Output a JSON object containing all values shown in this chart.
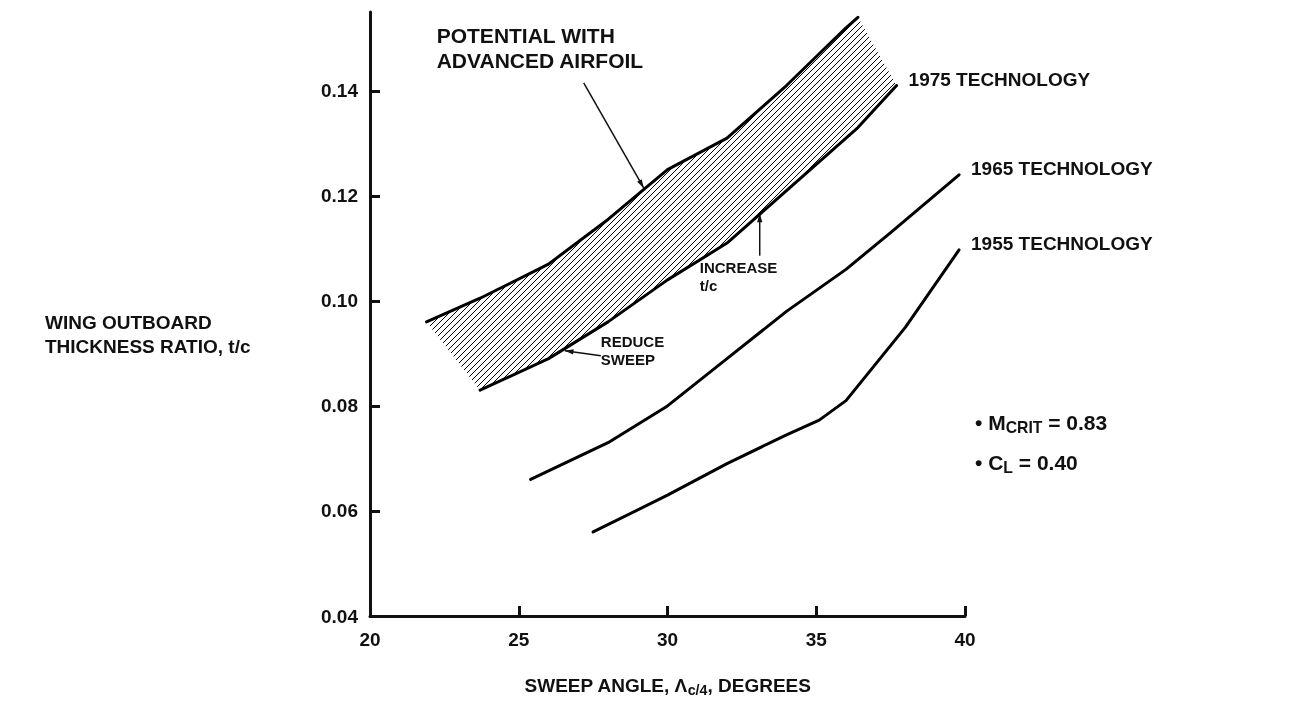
{
  "chart_data": {
    "type": "line",
    "xlabel": "SWEEP ANGLE, Λ$_{c/4}$, DEGREES",
    "ylabel": "WING OUTBOARD THICKNESS RATIO, t/c",
    "xlim": [
      20,
      40
    ],
    "xticks": [
      20,
      25,
      30,
      35,
      40
    ],
    "ylim": [
      0.04,
      0.155
    ],
    "yticks": [
      {
        "value": 0.04,
        "label": "0.04"
      },
      {
        "value": 0.06,
        "label": "0.06"
      },
      {
        "value": 0.08,
        "label": "0.08"
      },
      {
        "value": 0.1,
        "label": "0.10"
      },
      {
        "value": 0.12,
        "label": "0.12"
      },
      {
        "value": 0.14,
        "label": "0.14"
      }
    ],
    "grid": false,
    "legend": false,
    "marker": "none",
    "line_style": "solid",
    "series": [
      {
        "name": "1975 TECHNOLOGY",
        "color": "#000000",
        "x": [
          21.9,
          23.7,
          26,
          28,
          30,
          32,
          34,
          36,
          36.4,
          37.7
        ],
        "values": [
          null,
          0.083,
          0.089,
          0.096,
          0.104,
          0.111,
          0.121,
          0.131,
          0.133,
          0.141
        ],
        "lower": [
          0.096,
          0.083,
          0.089,
          0.096,
          0.104,
          0.111,
          0.121,
          0.131,
          0.133,
          0.141
        ],
        "upper": [
          0.096,
          0.1005,
          0.107,
          0.1155,
          0.125,
          0.131,
          0.141,
          0.152,
          0.154,
          0.141
        ]
      },
      {
        "color": "#000000",
        "x": [
          21.9,
          23.7,
          26,
          28,
          30,
          32,
          34,
          36,
          36.4
        ],
        "values": [
          0.096,
          0.1005,
          0.107,
          0.1155,
          0.125,
          0.131,
          0.141,
          0.152,
          0.154
        ]
      },
      {
        "name": "1965 TECHNOLOGY",
        "color": "#000000",
        "x": [
          25.4,
          28,
          30,
          32,
          34,
          36,
          37.5,
          39.8
        ],
        "values": [
          0.066,
          0.073,
          0.08,
          0.089,
          0.098,
          0.106,
          0.113,
          0.124
        ]
      },
      {
        "name": "1955 TECHNOLOGY",
        "color": "#000000",
        "x": [
          27.5,
          30,
          32,
          34,
          35.1,
          36,
          38,
          39.8
        ],
        "values": [
          0.056,
          0.063,
          0.069,
          0.0745,
          0.0773,
          0.081,
          0.095,
          0.1097
        ]
      }
    ],
    "annotations": [
      {
        "text": "POTENTIAL WITH\nADVANCED AIRFOIL",
        "x": 29.2,
        "y": 0.1215
      },
      {
        "text": "INCREASE\nt/c",
        "x": 33.1,
        "y": 0.1166
      },
      {
        "text": "REDUCE\nSWEEP",
        "x": 26.55,
        "y": 0.0905
      },
      "• M$_{CRIT}$ = 0.83",
      "• C$_{L}$ = 0.40"
    ]
  }
}
